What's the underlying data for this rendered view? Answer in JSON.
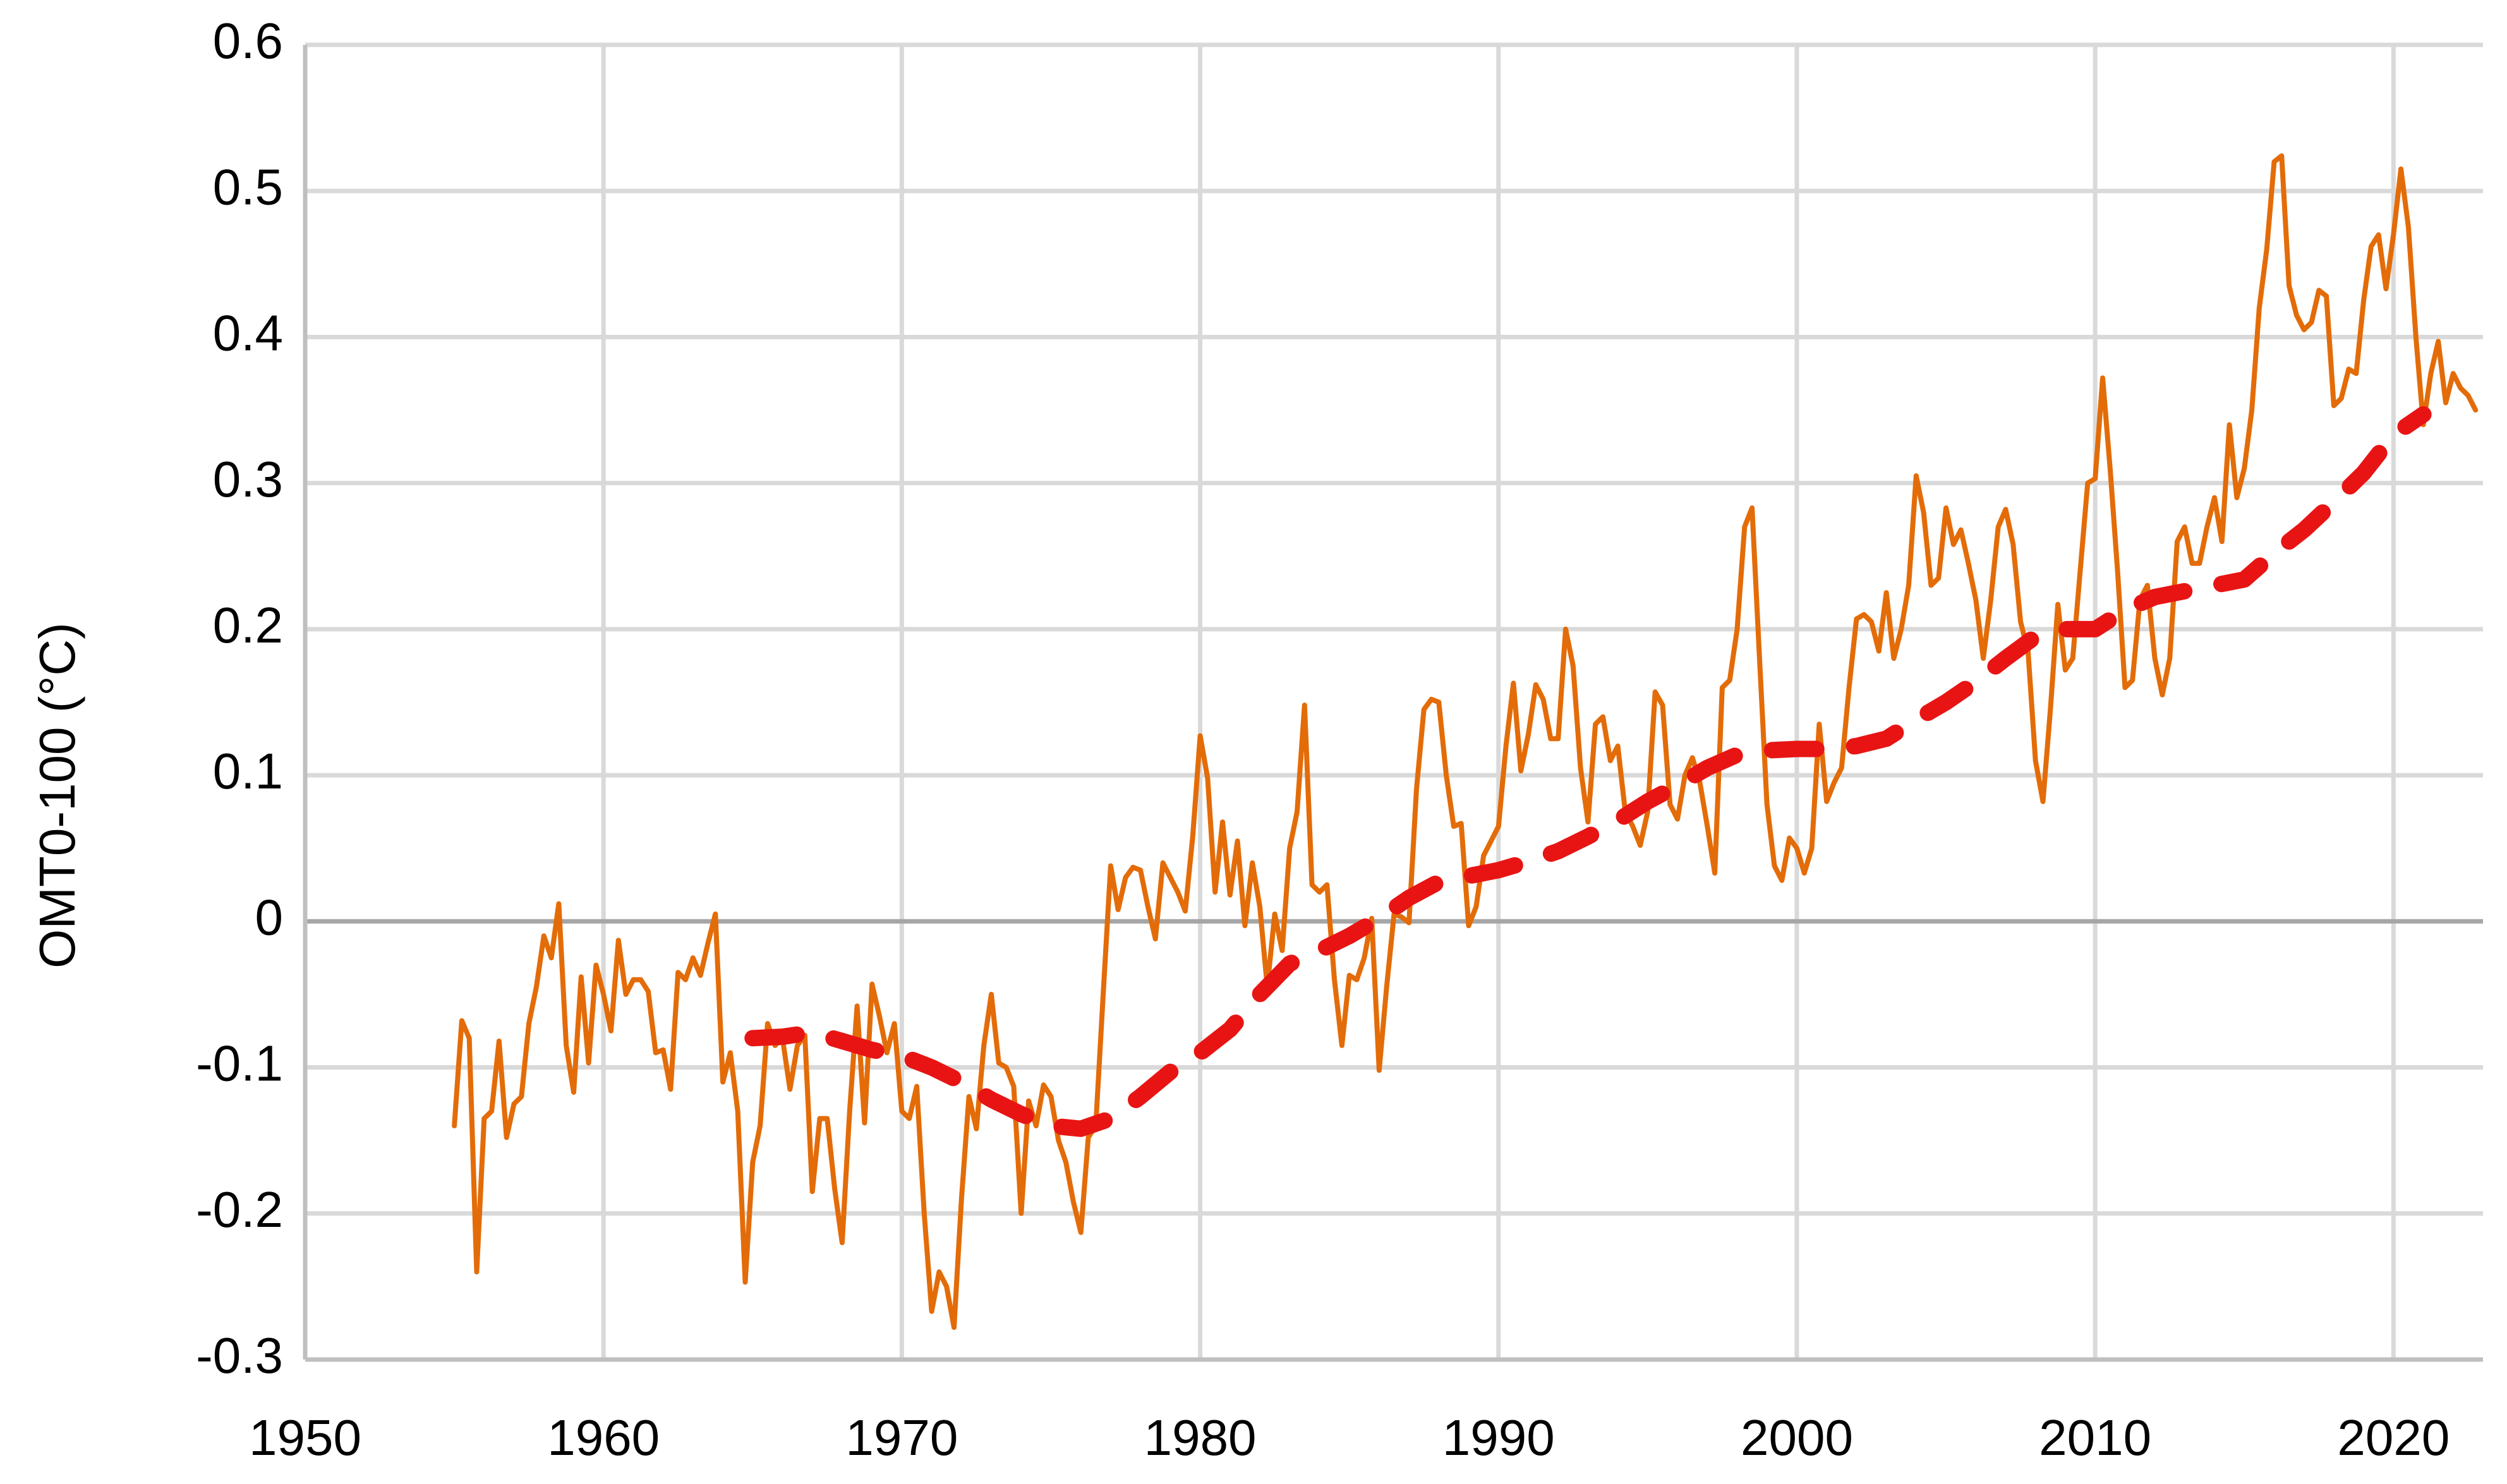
{
  "chart_data": {
    "type": "line",
    "y_label": "OMT0-100 (°C)",
    "xlim": [
      1950,
      2023
    ],
    "xticks": [
      1950,
      1960,
      1970,
      1980,
      1990,
      2000,
      2010,
      2020
    ],
    "ylim": [
      -0.3,
      0.6
    ],
    "yticks": [
      -0.3,
      -0.2,
      -0.1,
      0,
      0.1,
      0.2,
      0.3,
      0.4,
      0.5,
      0.6
    ],
    "grid": true,
    "series": [
      {
        "color": "#e36c09",
        "line_style": "solid",
        "x": [
          1955,
          1955.25,
          1955.5,
          1955.75,
          1956,
          1956.25,
          1956.5,
          1956.75,
          1957,
          1957.25,
          1957.5,
          1957.75,
          1958,
          1958.25,
          1958.5,
          1958.75,
          1959,
          1959.25,
          1959.5,
          1959.75,
          1960,
          1960.25,
          1960.5,
          1960.75,
          1961,
          1961.25,
          1961.5,
          1961.75,
          1962,
          1962.25,
          1962.5,
          1962.75,
          1963,
          1963.25,
          1963.5,
          1963.75,
          1964,
          1964.25,
          1964.5,
          1964.75,
          1965,
          1965.25,
          1965.5,
          1965.75,
          1966,
          1966.25,
          1966.5,
          1966.75,
          1967,
          1967.25,
          1967.5,
          1967.75,
          1968,
          1968.25,
          1968.5,
          1968.75,
          1969,
          1969.25,
          1969.5,
          1969.75,
          1970,
          1970.25,
          1970.5,
          1970.75,
          1971,
          1971.25,
          1971.5,
          1971.75,
          1972,
          1972.25,
          1972.5,
          1972.75,
          1973,
          1973.25,
          1973.5,
          1973.75,
          1974,
          1974.25,
          1974.5,
          1974.75,
          1975,
          1975.25,
          1975.5,
          1975.75,
          1976,
          1976.25,
          1976.5,
          1976.75,
          1977,
          1977.25,
          1977.5,
          1977.75,
          1978,
          1978.25,
          1978.5,
          1978.75,
          1979,
          1979.25,
          1979.5,
          1979.75,
          1980,
          1980.25,
          1980.5,
          1980.75,
          1981,
          1981.25,
          1981.5,
          1981.75,
          1982,
          1982.25,
          1982.5,
          1982.75,
          1983,
          1983.25,
          1983.5,
          1983.75,
          1984,
          1984.25,
          1984.5,
          1984.75,
          1985,
          1985.25,
          1985.5,
          1985.75,
          1986,
          1986.25,
          1986.5,
          1986.75,
          1987,
          1987.25,
          1987.5,
          1987.75,
          1988,
          1988.25,
          1988.5,
          1988.75,
          1989,
          1989.25,
          1989.5,
          1989.75,
          1990,
          1990.25,
          1990.5,
          1990.75,
          1991,
          1991.25,
          1991.5,
          1991.75,
          1992,
          1992.25,
          1992.5,
          1992.75,
          1993,
          1993.25,
          1993.5,
          1993.75,
          1994,
          1994.25,
          1994.5,
          1994.75,
          1995,
          1995.25,
          1995.5,
          1995.75,
          1996,
          1996.25,
          1996.5,
          1996.75,
          1997,
          1997.25,
          1997.5,
          1997.75,
          1998,
          1998.25,
          1998.5,
          1998.75,
          1999,
          1999.25,
          1999.5,
          1999.75,
          2000,
          2000.25,
          2000.5,
          2000.75,
          2001,
          2001.25,
          2001.5,
          2001.75,
          2002,
          2002.25,
          2002.5,
          2002.75,
          2003,
          2003.25,
          2003.5,
          2003.75,
          2004,
          2004.25,
          2004.5,
          2004.75,
          2005,
          2005.25,
          2005.5,
          2005.75,
          2006,
          2006.25,
          2006.5,
          2006.75,
          2007,
          2007.25,
          2007.5,
          2007.75,
          2008,
          2008.25,
          2008.5,
          2008.75,
          2009,
          2009.25,
          2009.5,
          2009.75,
          2010,
          2010.25,
          2010.5,
          2010.75,
          2011,
          2011.25,
          2011.5,
          2011.75,
          2012,
          2012.25,
          2012.5,
          2012.75,
          2013,
          2013.25,
          2013.5,
          2013.75,
          2014,
          2014.25,
          2014.5,
          2014.75,
          2015,
          2015.25,
          2015.5,
          2015.75,
          2016,
          2016.25,
          2016.5,
          2016.75,
          2017,
          2017.25,
          2017.5,
          2017.75,
          2018,
          2018.25,
          2018.5,
          2018.75,
          2019,
          2019.25,
          2019.5,
          2019.75,
          2020,
          2020.25,
          2020.5,
          2020.75,
          2021,
          2021.25,
          2021.5,
          2021.75,
          2022,
          2022.25,
          2022.5,
          2022.75
        ],
        "values": [
          -0.14,
          -0.068,
          -0.08,
          -0.24,
          -0.135,
          -0.13,
          -0.082,
          -0.148,
          -0.125,
          -0.12,
          -0.07,
          -0.045,
          -0.01,
          -0.025,
          0.012,
          -0.085,
          -0.117,
          -0.038,
          -0.097,
          -0.03,
          -0.05,
          -0.075,
          -0.013,
          -0.05,
          -0.04,
          -0.04,
          -0.048,
          -0.09,
          -0.088,
          -0.115,
          -0.035,
          -0.04,
          -0.025,
          -0.037,
          -0.015,
          0.005,
          -0.11,
          -0.09,
          -0.13,
          -0.247,
          -0.165,
          -0.14,
          -0.07,
          -0.085,
          -0.08,
          -0.115,
          -0.085,
          -0.078,
          -0.185,
          -0.135,
          -0.135,
          -0.183,
          -0.22,
          -0.13,
          -0.058,
          -0.138,
          -0.043,
          -0.065,
          -0.09,
          -0.07,
          -0.13,
          -0.135,
          -0.113,
          -0.2,
          -0.267,
          -0.24,
          -0.25,
          -0.278,
          -0.19,
          -0.12,
          -0.142,
          -0.085,
          -0.05,
          -0.097,
          -0.1,
          -0.113,
          -0.2,
          -0.123,
          -0.14,
          -0.112,
          -0.12,
          -0.15,
          -0.165,
          -0.192,
          -0.213,
          -0.148,
          -0.14,
          -0.05,
          0.038,
          0.008,
          0.03,
          0.037,
          0.035,
          0.01,
          -0.012,
          0.04,
          0.03,
          0.02,
          0.007,
          0.058,
          0.127,
          0.098,
          0.02,
          0.068,
          0.018,
          0.055,
          -0.003,
          0.04,
          0.01,
          -0.045,
          0.005,
          -0.02,
          0.05,
          0.075,
          0.148,
          0.025,
          0.02,
          0.025,
          -0.04,
          -0.085,
          -0.037,
          -0.04,
          -0.025,
          0.002,
          -0.102,
          -0.045,
          0.005,
          0.003,
          -0.001,
          0.09,
          0.145,
          0.152,
          0.15,
          0.1,
          0.065,
          0.067,
          -0.003,
          0.01,
          0.045,
          0.055,
          0.065,
          0.12,
          0.163,
          0.103,
          0.128,
          0.162,
          0.152,
          0.125,
          0.125,
          0.2,
          0.175,
          0.105,
          0.068,
          0.135,
          0.14,
          0.11,
          0.12,
          0.075,
          0.065,
          0.052,
          0.075,
          0.157,
          0.148,
          0.08,
          0.07,
          0.1,
          0.112,
          0.095,
          0.065,
          0.033,
          0.16,
          0.165,
          0.2,
          0.27,
          0.283,
          0.18,
          0.08,
          0.038,
          0.028,
          0.057,
          0.05,
          0.033,
          0.05,
          0.135,
          0.082,
          0.095,
          0.105,
          0.16,
          0.207,
          0.21,
          0.205,
          0.185,
          0.225,
          0.18,
          0.2,
          0.23,
          0.305,
          0.28,
          0.23,
          0.235,
          0.283,
          0.258,
          0.268,
          0.245,
          0.22,
          0.18,
          0.22,
          0.27,
          0.282,
          0.258,
          0.205,
          0.185,
          0.11,
          0.082,
          0.145,
          0.217,
          0.172,
          0.18,
          0.24,
          0.3,
          0.303,
          0.372,
          0.31,
          0.24,
          0.16,
          0.165,
          0.22,
          0.23,
          0.18,
          0.155,
          0.18,
          0.26,
          0.27,
          0.245,
          0.245,
          0.27,
          0.29,
          0.26,
          0.34,
          0.29,
          0.31,
          0.35,
          0.42,
          0.46,
          0.52,
          0.524,
          0.435,
          0.415,
          0.405,
          0.41,
          0.432,
          0.428,
          0.353,
          0.358,
          0.378,
          0.375,
          0.425,
          0.462,
          0.47,
          0.433,
          0.47,
          0.515,
          0.475,
          0.4,
          0.34,
          0.375,
          0.397,
          0.355,
          0.375,
          0.365,
          0.36,
          0.35
        ]
      },
      {
        "color": "#e81414",
        "line_style": "dashed",
        "x": [
          1965,
          1966,
          1967,
          1968,
          1969,
          1970,
          1971,
          1972,
          1973,
          1974,
          1975,
          1976,
          1977,
          1978,
          1979,
          1980,
          1981,
          1982,
          1983,
          1984,
          1985,
          1986,
          1987,
          1988,
          1989,
          1990,
          1991,
          1992,
          1993,
          1994,
          1995,
          1996,
          1997,
          1998,
          1999,
          2000,
          2001,
          2002,
          2003,
          2004,
          2005,
          2006,
          2007,
          2008,
          2009,
          2010,
          2011,
          2012,
          2013,
          2014,
          2015,
          2016,
          2017,
          2018,
          2019,
          2020,
          2021
        ],
        "values": [
          -0.08,
          -0.079,
          -0.076,
          -0.082,
          -0.088,
          -0.092,
          -0.1,
          -0.11,
          -0.122,
          -0.132,
          -0.14,
          -0.142,
          -0.135,
          -0.12,
          -0.103,
          -0.09,
          -0.074,
          -0.05,
          -0.029,
          -0.02,
          -0.01,
          0.002,
          0.016,
          0.027,
          0.031,
          0.035,
          0.041,
          0.048,
          0.058,
          0.069,
          0.082,
          0.093,
          0.105,
          0.114,
          0.117,
          0.118,
          0.118,
          0.12,
          0.125,
          0.138,
          0.15,
          0.164,
          0.18,
          0.195,
          0.2,
          0.2,
          0.213,
          0.222,
          0.226,
          0.23,
          0.234,
          0.252,
          0.268,
          0.287,
          0.307,
          0.333,
          0.347
        ]
      }
    ]
  }
}
